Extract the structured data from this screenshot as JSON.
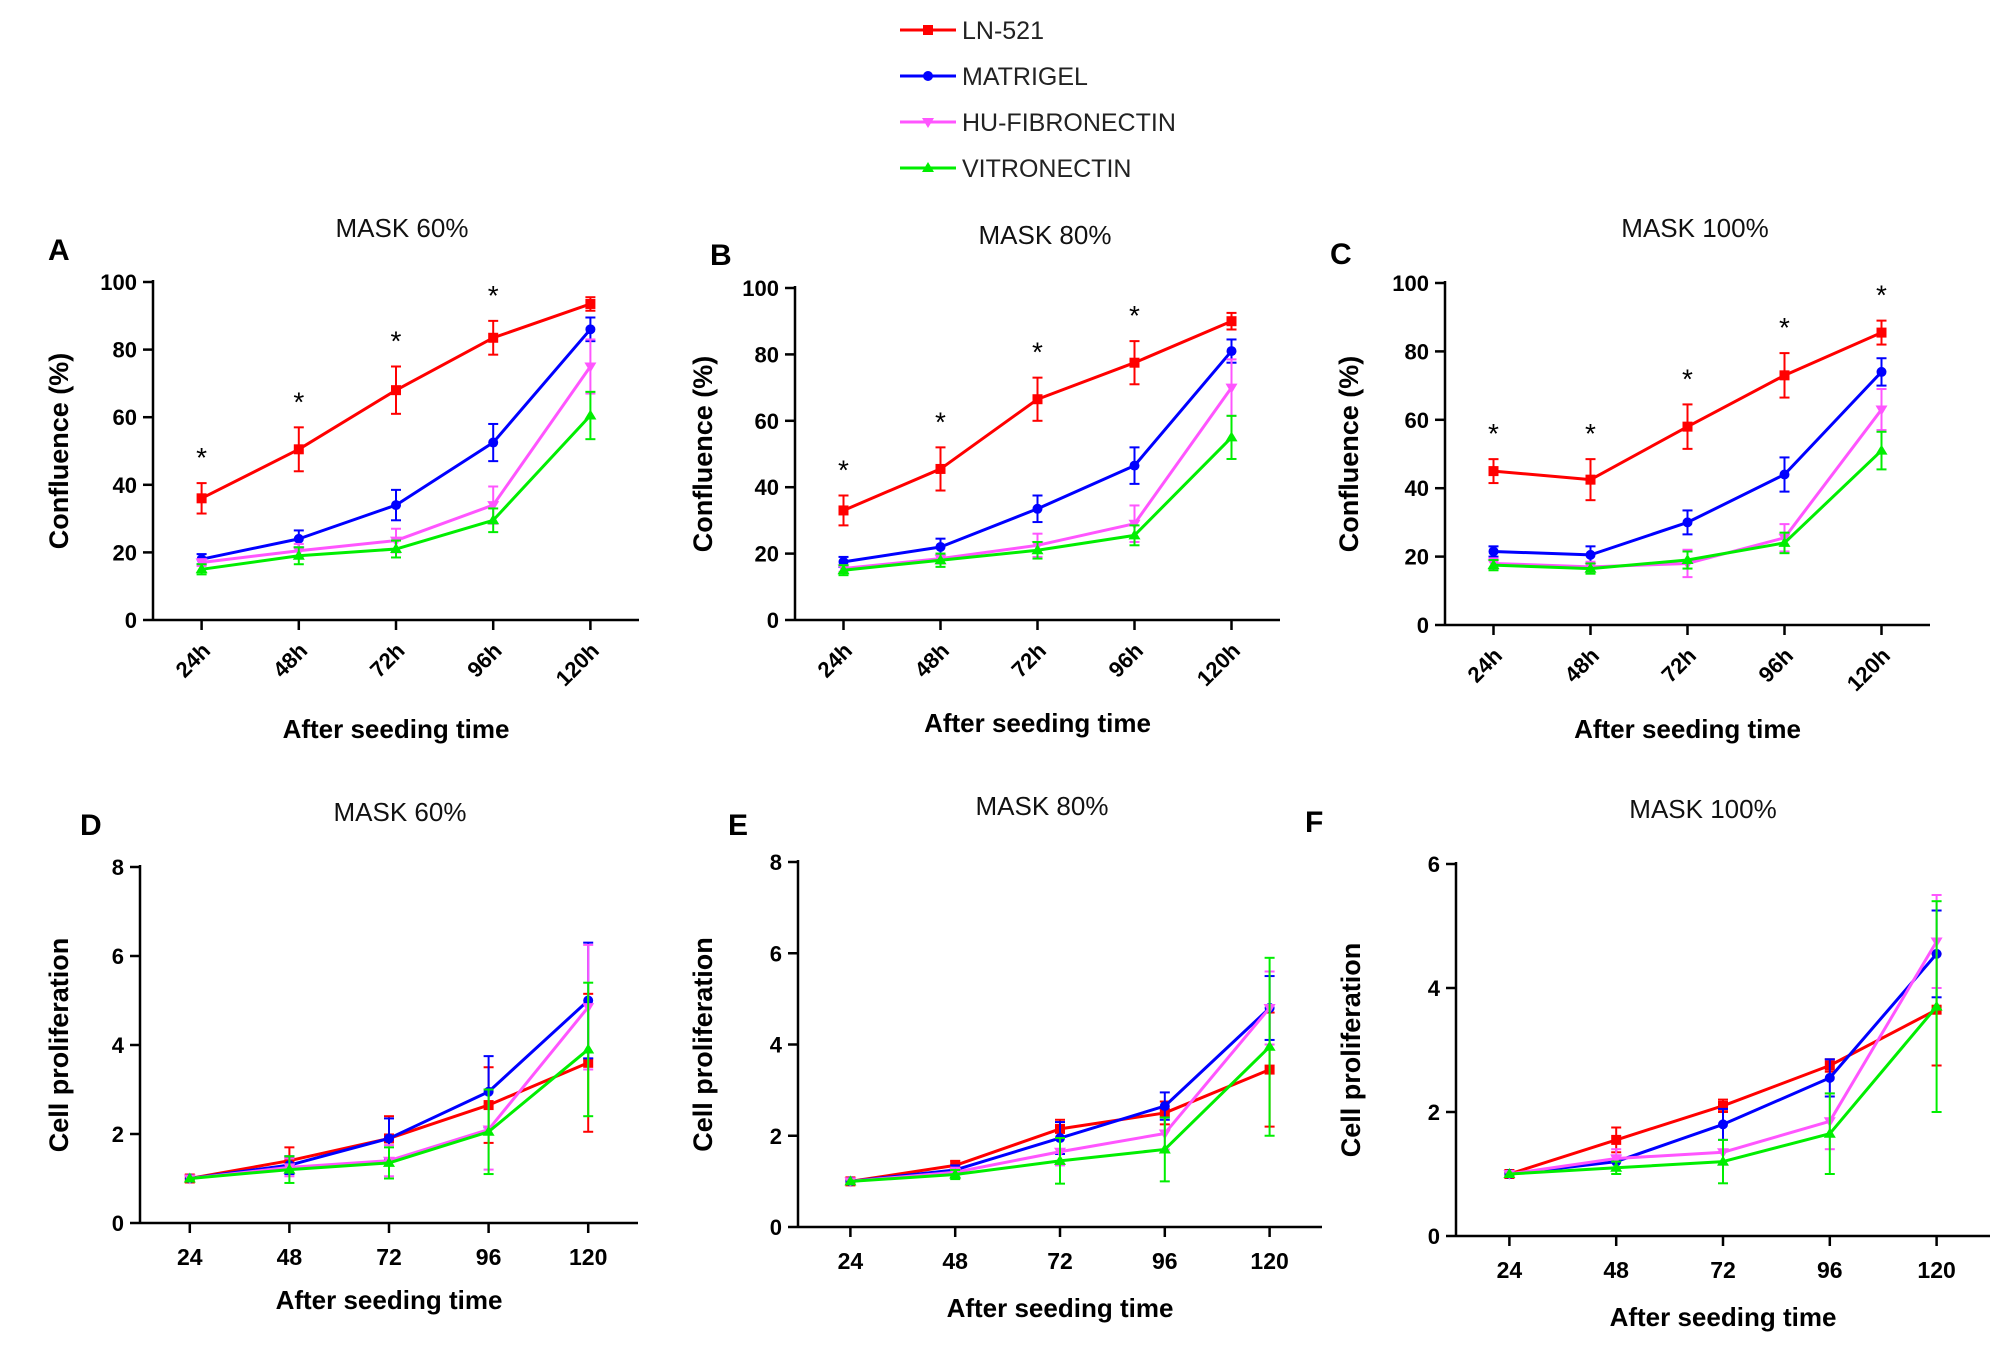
{
  "legend": [
    {
      "label": "LN-521",
      "color": "#ff0000",
      "marker": "square"
    },
    {
      "label": "MATRIGEL",
      "color": "#0000ff",
      "marker": "circle"
    },
    {
      "label": "HU-FIBRONECTIN",
      "color": "#ff55ff",
      "marker": "triangle-down"
    },
    {
      "label": "VITRONECTIN",
      "color": "#00ee00",
      "marker": "triangle-up"
    }
  ],
  "chart_data": [
    {
      "panel": "A",
      "type": "line",
      "title": "MASK 60%",
      "xlabel": "After seeding time",
      "ylabel": "Confluence (%)",
      "categories": [
        "24h",
        "48h",
        "72h",
        "96h",
        "120h"
      ],
      "ylim": [
        0,
        100
      ],
      "yticks": [
        "0",
        "20",
        "40",
        "60",
        "80",
        "100"
      ],
      "rotated_xticks": true,
      "significance": [
        "*",
        "*",
        "*",
        "*",
        ""
      ],
      "series": [
        {
          "name": "LN-521",
          "values": [
            36,
            50.5,
            68,
            83.5,
            93.5
          ],
          "errors": [
            4.5,
            6.5,
            7,
            5,
            2
          ]
        },
        {
          "name": "MATRIGEL",
          "values": [
            18,
            24,
            34,
            52.5,
            86
          ],
          "errors": [
            1.5,
            2.5,
            4.5,
            5.5,
            3.5
          ]
        },
        {
          "name": "HU-FIBRONECTIN",
          "values": [
            17,
            20.5,
            23.5,
            34,
            75
          ],
          "errors": [
            1,
            2,
            3.5,
            5.5,
            8
          ]
        },
        {
          "name": "VITRONECTIN",
          "values": [
            15,
            19,
            21,
            29.5,
            60.5
          ],
          "errors": [
            1.5,
            2.5,
            2.5,
            3.5,
            7
          ]
        }
      ]
    },
    {
      "panel": "B",
      "type": "line",
      "title": "MASK 80%",
      "xlabel": "After seeding time",
      "ylabel": "Confluence (%)",
      "categories": [
        "24h",
        "48h",
        "72h",
        "96h",
        "120h"
      ],
      "ylim": [
        0,
        100
      ],
      "yticks": [
        "0",
        "20",
        "40",
        "60",
        "80",
        "100"
      ],
      "rotated_xticks": true,
      "significance": [
        "*",
        "*",
        "*",
        "*",
        ""
      ],
      "series": [
        {
          "name": "LN-521",
          "values": [
            33,
            45.5,
            66.5,
            77.5,
            90
          ],
          "errors": [
            4.5,
            6.5,
            6.5,
            6.5,
            2.5
          ]
        },
        {
          "name": "MATRIGEL",
          "values": [
            17.5,
            22,
            33.5,
            46.5,
            81
          ],
          "errors": [
            1.5,
            2.5,
            4,
            5.5,
            3.5
          ]
        },
        {
          "name": "HU-FIBRONECTIN",
          "values": [
            15.5,
            18.5,
            22.5,
            29,
            70
          ],
          "errors": [
            1,
            1.5,
            3.5,
            5.5,
            8.5
          ]
        },
        {
          "name": "VITRONECTIN",
          "values": [
            15,
            18,
            21,
            25.5,
            55
          ],
          "errors": [
            1.5,
            2,
            2.5,
            3,
            6.5
          ]
        }
      ]
    },
    {
      "panel": "C",
      "type": "line",
      "title": "MASK 100%",
      "xlabel": "After seeding time",
      "ylabel": "Confluence (%)",
      "categories": [
        "24h",
        "48h",
        "72h",
        "96h",
        "120h"
      ],
      "ylim": [
        0,
        100
      ],
      "yticks": [
        "0",
        "20",
        "40",
        "60",
        "80",
        "100"
      ],
      "rotated_xticks": true,
      "significance": [
        "*",
        "*",
        "*",
        "*",
        "*"
      ],
      "series": [
        {
          "name": "LN-521",
          "values": [
            45,
            42.5,
            58,
            73,
            85.5
          ],
          "errors": [
            3.5,
            6,
            6.5,
            6.5,
            3.5
          ]
        },
        {
          "name": "MATRIGEL",
          "values": [
            21.5,
            20.5,
            30,
            44,
            74
          ],
          "errors": [
            1.5,
            2.5,
            3.5,
            5,
            4
          ]
        },
        {
          "name": "HU-FIBRONECTIN",
          "values": [
            18,
            17,
            18,
            25.5,
            63
          ],
          "errors": [
            1.5,
            1.5,
            4,
            4,
            6
          ]
        },
        {
          "name": "VITRONECTIN",
          "values": [
            17.5,
            16.5,
            19,
            24,
            51
          ],
          "errors": [
            1.5,
            1.5,
            2.5,
            3,
            5.5
          ]
        }
      ]
    },
    {
      "panel": "D",
      "type": "line",
      "title": "MASK 60%",
      "xlabel": "After seeding time",
      "ylabel": "Cell proliferation",
      "categories": [
        "24",
        "48",
        "72",
        "96",
        "120"
      ],
      "ylim": [
        0,
        8
      ],
      "yticks": [
        "0",
        "2",
        "4",
        "6",
        "8"
      ],
      "rotated_xticks": false,
      "significance": [
        "",
        "",
        "",
        "",
        ""
      ],
      "series": [
        {
          "name": "LN-521",
          "values": [
            1,
            1.4,
            1.9,
            2.65,
            3.6
          ],
          "errors": [
            0,
            0.3,
            0.5,
            0.85,
            1.55
          ]
        },
        {
          "name": "MATRIGEL",
          "values": [
            1,
            1.3,
            1.9,
            2.95,
            5.0
          ],
          "errors": [
            0,
            0.2,
            0.45,
            0.8,
            1.3
          ]
        },
        {
          "name": "HU-FIBRONECTIN",
          "values": [
            1,
            1.25,
            1.4,
            2.1,
            4.85
          ],
          "errors": [
            0,
            0.2,
            0.35,
            0.9,
            1.4
          ]
        },
        {
          "name": "VITRONECTIN",
          "values": [
            1,
            1.2,
            1.35,
            2.05,
            3.9
          ],
          "errors": [
            0,
            0.3,
            0.35,
            0.95,
            1.5
          ]
        }
      ]
    },
    {
      "panel": "E",
      "type": "line",
      "title": "MASK 80%",
      "xlabel": "After seeding time",
      "ylabel": "Cell proliferation",
      "categories": [
        "24",
        "48",
        "72",
        "96",
        "120"
      ],
      "ylim": [
        0,
        8
      ],
      "yticks": [
        "0",
        "2",
        "4",
        "6",
        "8"
      ],
      "rotated_xticks": false,
      "significance": [
        "",
        "",
        "",
        "",
        ""
      ],
      "series": [
        {
          "name": "LN-521",
          "values": [
            1,
            1.35,
            2.15,
            2.5,
            3.45
          ],
          "errors": [
            0,
            0.1,
            0.2,
            0.25,
            1.25
          ]
        },
        {
          "name": "MATRIGEL",
          "values": [
            1,
            1.25,
            1.95,
            2.65,
            4.8
          ],
          "errors": [
            0,
            0.1,
            0.35,
            0.3,
            0.7
          ]
        },
        {
          "name": "HU-FIBRONECTIN",
          "values": [
            1,
            1.2,
            1.65,
            2.05,
            4.8
          ],
          "errors": [
            0,
            0.1,
            0.3,
            0.35,
            0.8
          ]
        },
        {
          "name": "VITRONECTIN",
          "values": [
            1,
            1.15,
            1.45,
            1.7,
            3.95
          ],
          "errors": [
            0,
            0.1,
            0.5,
            0.7,
            1.95
          ]
        }
      ]
    },
    {
      "panel": "F",
      "type": "line",
      "title": "MASK 100%",
      "xlabel": "After seeding time",
      "ylabel": "Cell proliferation",
      "categories": [
        "24",
        "48",
        "72",
        "96",
        "120"
      ],
      "ylim": [
        0,
        6
      ],
      "yticks": [
        "0",
        "2",
        "4",
        "6"
      ],
      "rotated_xticks": false,
      "significance": [
        "",
        "",
        "",
        "",
        ""
      ],
      "series": [
        {
          "name": "LN-521",
          "values": [
            1,
            1.55,
            2.1,
            2.75,
            3.65
          ],
          "errors": [
            0,
            0.2,
            0.1,
            0.1,
            0.9
          ]
        },
        {
          "name": "MATRIGEL",
          "values": [
            1,
            1.2,
            1.8,
            2.55,
            4.55
          ],
          "errors": [
            0,
            0.1,
            0.25,
            0.3,
            0.7
          ]
        },
        {
          "name": "HU-FIBRONECTIN",
          "values": [
            1,
            1.25,
            1.35,
            1.85,
            4.75
          ],
          "errors": [
            0,
            0.15,
            0.2,
            0.45,
            0.75
          ]
        },
        {
          "name": "VITRONECTIN",
          "values": [
            1,
            1.1,
            1.2,
            1.65,
            3.7
          ],
          "errors": [
            0,
            0.1,
            0.35,
            0.65,
            1.7
          ]
        }
      ]
    }
  ]
}
